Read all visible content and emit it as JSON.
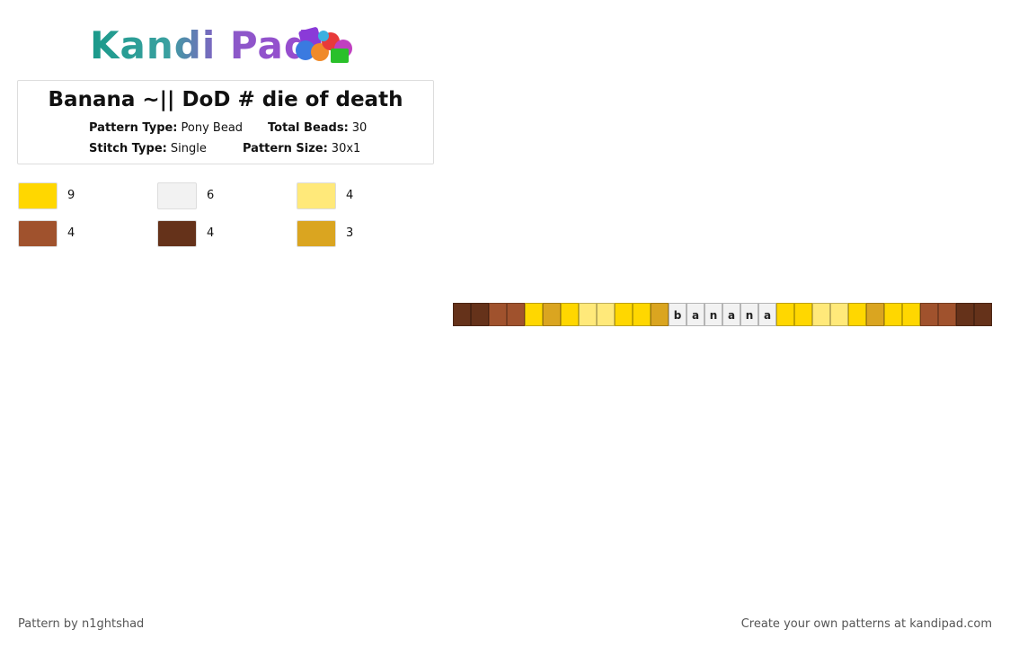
{
  "header": {
    "logo": "Kandi Pad"
  },
  "pattern": {
    "title": "Banana ~|| DoD # die of death",
    "fields": [
      {
        "label": "Pattern Type:",
        "value": "Pony Bead"
      },
      {
        "label": "Total Beads:",
        "value": "30"
      },
      {
        "label": "Stitch Type:",
        "value": "Single"
      },
      {
        "label": "Pattern Size:",
        "value": "30x1"
      }
    ]
  },
  "legend": [
    {
      "color": "#ffd700",
      "count": "9"
    },
    {
      "color": "#f2f2f2",
      "count": "6"
    },
    {
      "color": "#ffe97a",
      "count": "4"
    },
    {
      "color": "#a0522d",
      "count": "4"
    },
    {
      "color": "#65321a",
      "count": "4"
    },
    {
      "color": "#daa520",
      "count": "3"
    }
  ],
  "beads": [
    {
      "color": "#65321a"
    },
    {
      "color": "#65321a"
    },
    {
      "color": "#a0522d"
    },
    {
      "color": "#a0522d"
    },
    {
      "color": "#ffd700"
    },
    {
      "color": "#daa520"
    },
    {
      "color": "#ffd700"
    },
    {
      "color": "#ffe97a"
    },
    {
      "color": "#ffe97a"
    },
    {
      "color": "#ffd700"
    },
    {
      "color": "#ffd700"
    },
    {
      "color": "#daa520"
    },
    {
      "color": "#f2f2f2",
      "letter": "b"
    },
    {
      "color": "#f2f2f2",
      "letter": "a"
    },
    {
      "color": "#f2f2f2",
      "letter": "n"
    },
    {
      "color": "#f2f2f2",
      "letter": "a"
    },
    {
      "color": "#f2f2f2",
      "letter": "n"
    },
    {
      "color": "#f2f2f2",
      "letter": "a"
    },
    {
      "color": "#ffd700"
    },
    {
      "color": "#ffd700"
    },
    {
      "color": "#ffe97a"
    },
    {
      "color": "#ffe97a"
    },
    {
      "color": "#ffd700"
    },
    {
      "color": "#daa520"
    },
    {
      "color": "#ffd700"
    },
    {
      "color": "#ffd700"
    },
    {
      "color": "#a0522d"
    },
    {
      "color": "#a0522d"
    },
    {
      "color": "#65321a"
    },
    {
      "color": "#65321a"
    }
  ],
  "footer": {
    "left": "Pattern by n1ghtshad",
    "right": "Create your own patterns at kandipad.com"
  }
}
